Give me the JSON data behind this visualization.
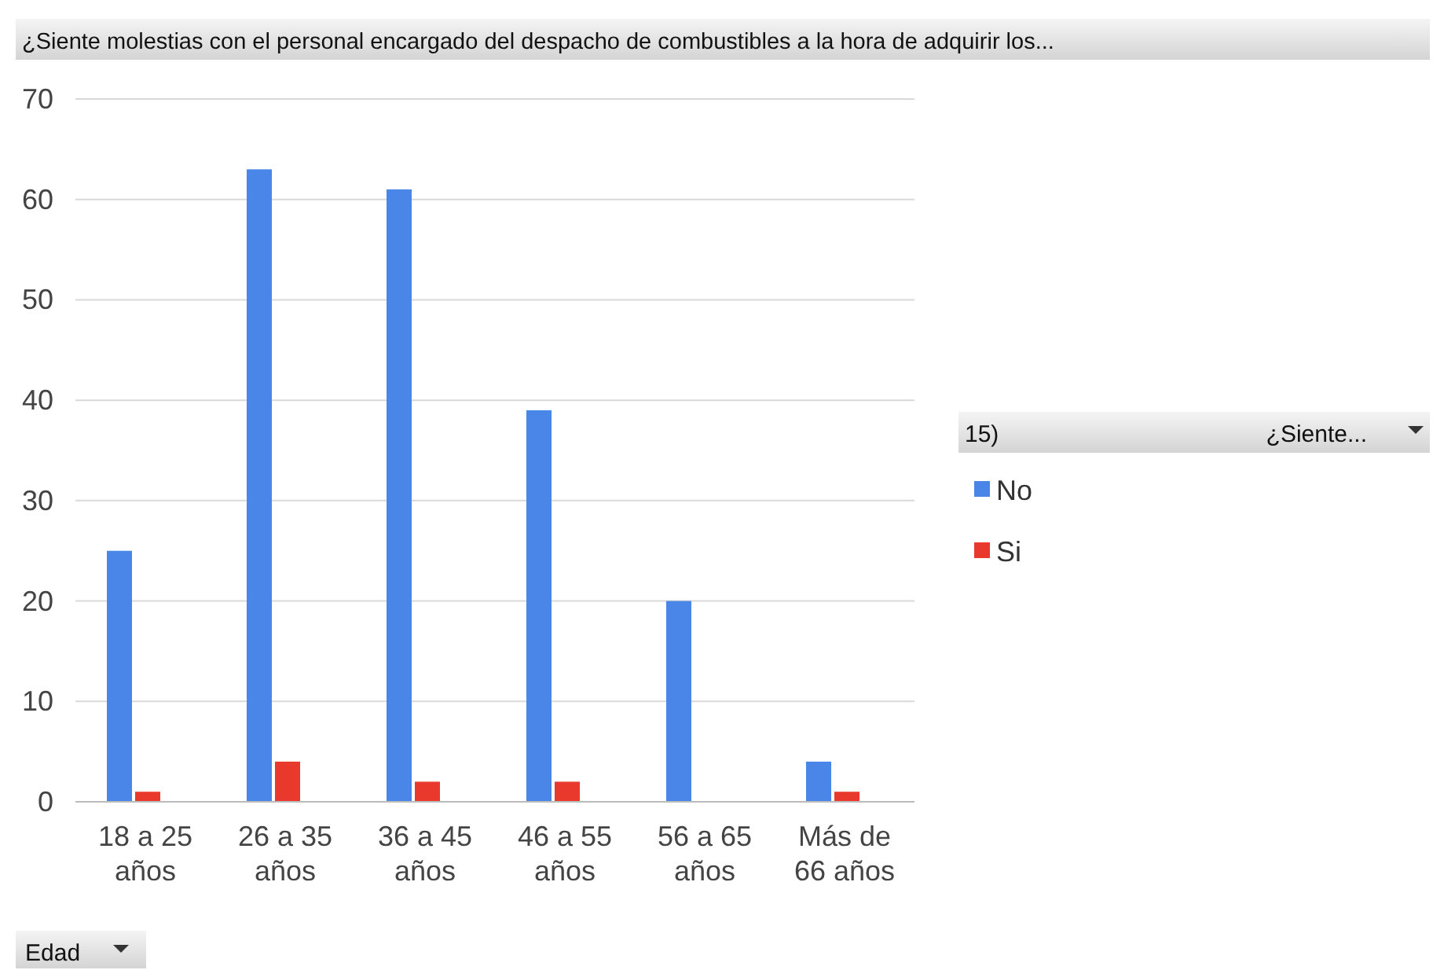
{
  "chart_data": {
    "type": "bar",
    "title": "¿Siente molestias con el personal encargado del despacho de combustibles a la hora de adquirir los...",
    "xlabel": "Edad",
    "legend_title": "15) ¿Siente...",
    "categories": [
      "18 a 25 años",
      "26 a 35 años",
      "36 a 45 años",
      "46 a 55 años",
      "56 a 65 años",
      "Más de 66 años"
    ],
    "series": [
      {
        "name": "No",
        "color": "#4a86e8",
        "values": [
          25,
          63,
          61,
          39,
          20,
          4
        ]
      },
      {
        "name": "Si",
        "color": "#e8392c",
        "values": [
          1,
          4,
          2,
          2,
          null,
          1
        ]
      }
    ],
    "ylim": [
      0,
      70
    ],
    "yticks": [
      0,
      10,
      20,
      30,
      40,
      50,
      60,
      70
    ],
    "grid": "y",
    "legend": "right"
  }
}
